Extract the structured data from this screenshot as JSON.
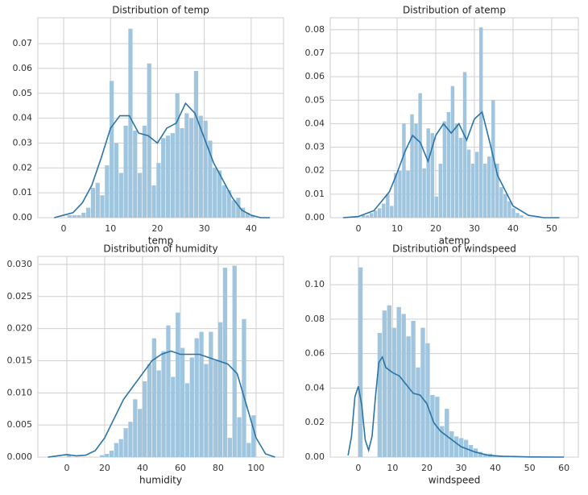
{
  "chart_data": [
    {
      "type": "histogram",
      "title": "Distribution of temp",
      "x_label": "temp",
      "color": "#9fc5df",
      "grid": true,
      "bins": [
        0.8,
        1.8,
        2.8,
        3.8,
        4.8,
        5.8,
        6.8,
        7.8,
        8.8,
        9.8,
        10.8,
        11.8,
        12.8,
        13.8,
        14.8,
        15.8,
        16.8,
        17.8,
        18.8,
        19.8,
        20.8,
        21.8,
        22.8,
        23.8,
        24.8,
        25.8,
        26.8,
        27.8,
        28.8,
        29.8,
        30.8,
        31.8,
        32.8,
        33.8,
        34.8,
        35.8,
        36.8,
        37.8,
        38.8,
        39.8,
        40.8
      ],
      "values": [
        0.001,
        0.001,
        0.001,
        0.002,
        0.004,
        0.012,
        0.014,
        0.009,
        0.021,
        0.055,
        0.03,
        0.018,
        0.037,
        0.076,
        0.035,
        0.018,
        0.037,
        0.062,
        0.013,
        0.022,
        0.032,
        0.033,
        0.034,
        0.05,
        0.036,
        0.042,
        0.04,
        0.059,
        0.041,
        0.039,
        0.031,
        0.02,
        0.019,
        0.013,
        0.011,
        0.007,
        0.008,
        0.004,
        0.002,
        0.001
      ],
      "kde": {
        "color": "#2a74a8",
        "x": [
          -2,
          0,
          2,
          4,
          6,
          8,
          10,
          12,
          14,
          16,
          18,
          20,
          22,
          24,
          26,
          28,
          30,
          32,
          34,
          36,
          38,
          40,
          42,
          44
        ],
        "values": [
          0,
          0.001,
          0.002,
          0.006,
          0.013,
          0.024,
          0.036,
          0.041,
          0.041,
          0.034,
          0.033,
          0.03,
          0.036,
          0.038,
          0.046,
          0.042,
          0.032,
          0.022,
          0.015,
          0.008,
          0.003,
          0.001,
          0,
          0
        ]
      },
      "xlim": [
        -5.5,
        46.9
      ],
      "ylim": [
        0,
        0.0804
      ],
      "xticks": [
        0,
        10,
        20,
        30,
        40
      ],
      "yticks": [
        {
          "value": 0,
          "label": "0.00"
        },
        {
          "value": 0.01,
          "label": "0.01"
        },
        {
          "value": 0.02,
          "label": "0.02"
        },
        {
          "value": 0.03,
          "label": "0.03"
        },
        {
          "value": 0.04,
          "label": "0.04"
        },
        {
          "value": 0.05,
          "label": "0.05"
        },
        {
          "value": 0.06,
          "label": "0.06"
        },
        {
          "value": 0.07,
          "label": "0.07"
        }
      ]
    },
    {
      "type": "histogram",
      "title": "Distribution of atemp",
      "x_label": "atemp",
      "color": "#9fc5df",
      "grid": true,
      "bins": [
        0.8,
        1.85,
        2.9,
        3.95,
        5.0,
        6.05,
        7.1,
        8.15,
        9.2,
        10.25,
        11.3,
        12.35,
        13.4,
        14.45,
        15.5,
        16.55,
        17.6,
        18.65,
        19.7,
        20.75,
        21.8,
        22.85,
        23.9,
        24.95,
        26.0,
        27.05,
        28.1,
        29.15,
        30.2,
        31.25,
        32.3,
        33.35,
        34.4,
        35.45,
        36.5,
        37.55,
        38.6,
        39.65,
        40.7,
        41.75,
        42.8
      ],
      "values": [
        0.001,
        0.001,
        0.002,
        0.003,
        0.004,
        0.006,
        0.01,
        0.005,
        0.019,
        0.02,
        0.04,
        0.02,
        0.044,
        0.04,
        0.053,
        0.021,
        0.038,
        0.036,
        0.009,
        0.023,
        0.041,
        0.045,
        0.056,
        0.04,
        0.034,
        0.062,
        0.029,
        0.023,
        0.028,
        0.081,
        0.023,
        0.026,
        0.05,
        0.023,
        0.013,
        0.01,
        0.007,
        0.004,
        0.002,
        0.001
      ],
      "kde": {
        "color": "#2a74a8",
        "x": [
          -4,
          0,
          4,
          8,
          10,
          12,
          14,
          16,
          18,
          20,
          22,
          24,
          26,
          28,
          30,
          32,
          34,
          36,
          40,
          44,
          48,
          52
        ],
        "values": [
          0,
          0.0005,
          0.003,
          0.011,
          0.019,
          0.028,
          0.035,
          0.032,
          0.024,
          0.035,
          0.04,
          0.036,
          0.04,
          0.033,
          0.042,
          0.045,
          0.032,
          0.018,
          0.005,
          0.001,
          0,
          0
        ]
      },
      "xlim": [
        -7.3,
        56.9
      ],
      "ylim": [
        0,
        0.0851
      ],
      "xticks": [
        0,
        10,
        20,
        30,
        40,
        50
      ],
      "yticks": [
        {
          "value": 0,
          "label": "0.00"
        },
        {
          "value": 0.01,
          "label": "0.01"
        },
        {
          "value": 0.02,
          "label": "0.02"
        },
        {
          "value": 0.03,
          "label": "0.03"
        },
        {
          "value": 0.04,
          "label": "0.04"
        },
        {
          "value": 0.05,
          "label": "0.05"
        },
        {
          "value": 0.06,
          "label": "0.06"
        },
        {
          "value": 0.07,
          "label": "0.07"
        },
        {
          "value": 0.08,
          "label": "0.08"
        }
      ]
    },
    {
      "type": "histogram",
      "title": "Distribution of humidity",
      "x_label": "humidity",
      "color": "#9fc5df",
      "grid": true,
      "bins": [
        0,
        2.5,
        5,
        7.5,
        10,
        12.5,
        15,
        17.5,
        20,
        22.5,
        25,
        27.5,
        30,
        32.5,
        35,
        37.5,
        40,
        42.5,
        45,
        47.5,
        50,
        52.5,
        55,
        57.5,
        60,
        62.5,
        65,
        67.5,
        70,
        72.5,
        75,
        77.5,
        80,
        82.5,
        85,
        87.5,
        90,
        92.5,
        95,
        97.5,
        100
      ],
      "values": [
        0.0003,
        0,
        0,
        0,
        0,
        0,
        0,
        0.0003,
        0.0005,
        0.001,
        0.0022,
        0.0028,
        0.0045,
        0.0055,
        0.009,
        0.0075,
        0.0118,
        0.0145,
        0.0185,
        0.0135,
        0.0165,
        0.0205,
        0.0125,
        0.0225,
        0.017,
        0.0115,
        0.0155,
        0.0185,
        0.0195,
        0.0145,
        0.0195,
        0.015,
        0.021,
        0.0295,
        0.003,
        0.0298,
        0.0062,
        0.0215,
        0.0022,
        0.0065
      ],
      "kde": {
        "color": "#2a74a8",
        "x": [
          -10,
          -5,
          0,
          5,
          10,
          15,
          20,
          25,
          30,
          35,
          40,
          45,
          50,
          55,
          60,
          65,
          70,
          75,
          80,
          85,
          90,
          95,
          100,
          105,
          110
        ],
        "values": [
          0,
          0.0002,
          0.0004,
          0.0002,
          0.0003,
          0.001,
          0.003,
          0.006,
          0.009,
          0.011,
          0.013,
          0.015,
          0.016,
          0.0165,
          0.016,
          0.016,
          0.016,
          0.0155,
          0.015,
          0.0145,
          0.013,
          0.008,
          0.003,
          0.0005,
          0
        ]
      },
      "xlim": [
        -15.3,
        114.5
      ],
      "ylim": [
        0,
        0.03125
      ],
      "xticks": [
        0,
        20,
        40,
        60,
        80,
        100
      ],
      "yticks": [
        {
          "value": 0,
          "label": "0.000"
        },
        {
          "value": 0.005,
          "label": "0.005"
        },
        {
          "value": 0.01,
          "label": "0.010"
        },
        {
          "value": 0.015,
          "label": "0.015"
        },
        {
          "value": 0.02,
          "label": "0.020"
        },
        {
          "value": 0.025,
          "label": "0.025"
        },
        {
          "value": 0.03,
          "label": "0.030"
        }
      ]
    },
    {
      "type": "histogram",
      "title": "Distribution of windspeed",
      "x_label": "windspeed",
      "color": "#9fc5df",
      "grid": true,
      "bins": [
        0,
        1.4,
        2.8,
        4.2,
        5.6,
        7.0,
        8.4,
        9.8,
        11.2,
        12.6,
        14.0,
        15.4,
        16.8,
        18.2,
        19.6,
        21.0,
        22.4,
        23.8,
        25.2,
        26.6,
        28.0,
        29.4,
        30.8,
        32.2,
        33.6,
        35.0,
        36.4,
        37.8,
        39.2,
        40.6,
        42.0,
        43.4,
        44.8,
        46.2,
        47.6,
        49.0,
        50.4,
        51.8,
        53.2,
        54.6,
        56.0
      ],
      "values": [
        0.11,
        0,
        0,
        0,
        0.072,
        0.085,
        0.088,
        0.075,
        0.087,
        0.083,
        0.07,
        0.079,
        0.052,
        0.075,
        0.066,
        0.036,
        0.035,
        0.018,
        0.028,
        0.015,
        0.012,
        0.011,
        0.01,
        0.007,
        0.005,
        0.003,
        0.002,
        0.002,
        0.001,
        0.0005,
        0.0005,
        0.0003,
        0.0002,
        0.0001,
        0,
        0,
        0,
        0,
        0,
        0.0001
      ],
      "kde": {
        "color": "#2a74a8",
        "x": [
          -3,
          -2,
          -1,
          0,
          1,
          2,
          3,
          4,
          5,
          6,
          7,
          8,
          10,
          12,
          14,
          16,
          18,
          20,
          22,
          24,
          26,
          28,
          30,
          34,
          38,
          42,
          50,
          60
        ],
        "values": [
          0.001,
          0.012,
          0.035,
          0.041,
          0.03,
          0.01,
          0.004,
          0.012,
          0.035,
          0.055,
          0.058,
          0.052,
          0.049,
          0.047,
          0.042,
          0.037,
          0.036,
          0.031,
          0.02,
          0.015,
          0.012,
          0.009,
          0.006,
          0.003,
          0.001,
          0.0005,
          0.0001,
          0
        ]
      },
      "xlim": [
        -8.2,
        64.2
      ],
      "ylim": [
        0,
        0.1164
      ],
      "xticks": [
        0,
        10,
        20,
        30,
        40,
        50,
        60
      ],
      "yticks": [
        {
          "value": 0,
          "label": "0.00"
        },
        {
          "value": 0.02,
          "label": "0.02"
        },
        {
          "value": 0.04,
          "label": "0.04"
        },
        {
          "value": 0.06,
          "label": "0.06"
        },
        {
          "value": 0.08,
          "label": "0.08"
        },
        {
          "value": 0.1,
          "label": "0.10"
        }
      ]
    }
  ]
}
